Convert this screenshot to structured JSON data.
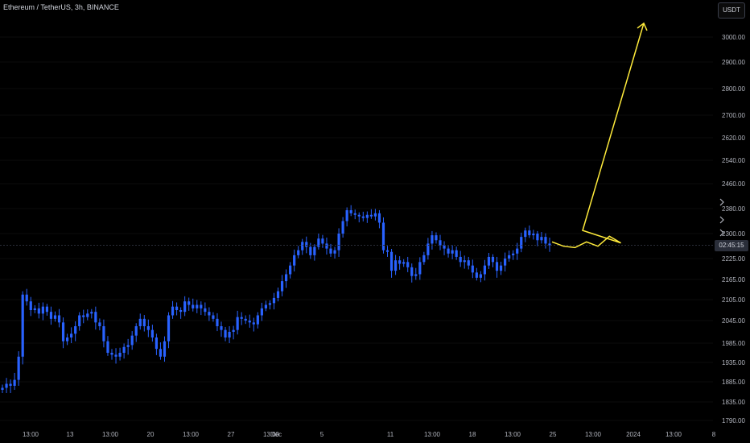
{
  "header": {
    "title": "Ethereum / TetherUS, 3h, BINANCE"
  },
  "currency_button": "USDT",
  "countdown": "02:45:15",
  "colors": {
    "candle": "#2962ff",
    "projection": "#ffeb3b",
    "axis_text": "#b2b5be"
  },
  "chart_data": {
    "type": "candlestick",
    "y_ticks": [
      "3000.00",
      "2900.00",
      "2800.00",
      "2700.00",
      "2620.00",
      "2540.00",
      "2460.00",
      "2380.00",
      "2300.00",
      "2225.00",
      "2165.00",
      "2105.00",
      "2045.00",
      "1985.00",
      "1935.00",
      "1885.00",
      "1835.00",
      "1790.00"
    ],
    "x_ticks": [
      "13:00",
      "13",
      "13:00",
      "20",
      "13:00",
      "27",
      "13:00",
      "Dec",
      "5",
      "11",
      "13:00",
      "18",
      "13:00",
      "25",
      "13:00",
      "2024",
      "13:00",
      "8"
    ],
    "price_series": [
      1870,
      1880,
      1875,
      1890,
      1950,
      2120,
      2100,
      2075,
      2080,
      2065,
      2085,
      2070,
      2050,
      2060,
      2040,
      1990,
      2000,
      2010,
      2030,
      2060,
      2055,
      2065,
      2070,
      2040,
      2030,
      1990,
      1960,
      1955,
      1950,
      1960,
      1975,
      1980,
      2005,
      2030,
      2050,
      2030,
      2020,
      2000,
      1970,
      1950,
      1990,
      2060,
      2085,
      2075,
      2070,
      2100,
      2090,
      2080,
      2090,
      2080,
      2070,
      2060,
      2050,
      2030,
      2020,
      2000,
      2015,
      2020,
      2055,
      2050,
      2045,
      2040,
      2035,
      2060,
      2080,
      2090,
      2095,
      2110,
      2130,
      2160,
      2180,
      2205,
      2235,
      2250,
      2275,
      2260,
      2235,
      2260,
      2285,
      2270,
      2255,
      2240,
      2250,
      2300,
      2340,
      2375,
      2365,
      2360,
      2355,
      2350,
      2360,
      2355,
      2365,
      2335,
      2250,
      2245,
      2190,
      2220,
      2210,
      2215,
      2200,
      2175,
      2180,
      2215,
      2235,
      2270,
      2295,
      2280,
      2265,
      2255,
      2240,
      2250,
      2230,
      2215,
      2220,
      2205,
      2185,
      2170,
      2180,
      2205,
      2230,
      2215,
      2190,
      2205,
      2225,
      2235,
      2240,
      2255,
      2290,
      2310,
      2295,
      2300,
      2280,
      2290,
      2270,
      2265
    ],
    "projection": [
      2275,
      2262,
      2258,
      2275,
      2262,
      2292,
      2272,
      2310,
      3055
    ],
    "current_price": 2265
  }
}
